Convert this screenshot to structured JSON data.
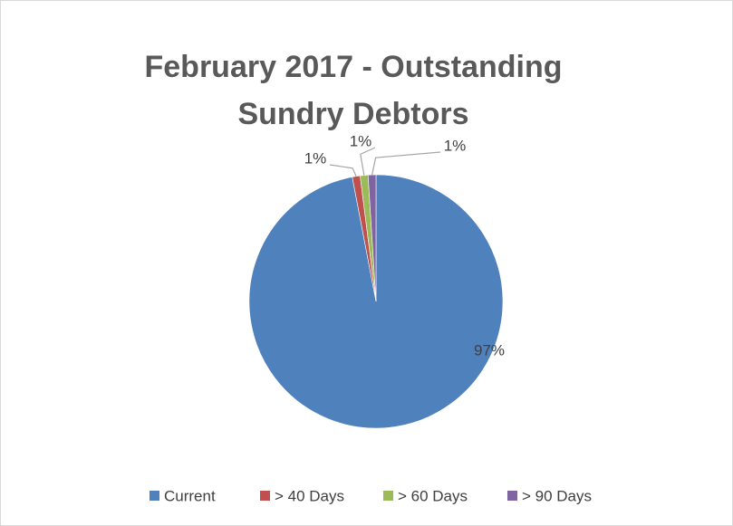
{
  "chart_data": {
    "type": "pie",
    "title": "February 2017 - Outstanding Sundry Debtors",
    "categories": [
      "Current",
      "> 40 Days",
      "> 60 Days",
      "> 90 Days"
    ],
    "values": [
      97,
      1,
      1,
      1
    ],
    "value_labels": [
      "97%",
      "1%",
      "1%",
      "1%"
    ],
    "colors": [
      "#4f81bd",
      "#c0504d",
      "#9bbb59",
      "#8064a2"
    ],
    "legend": "bottom"
  }
}
